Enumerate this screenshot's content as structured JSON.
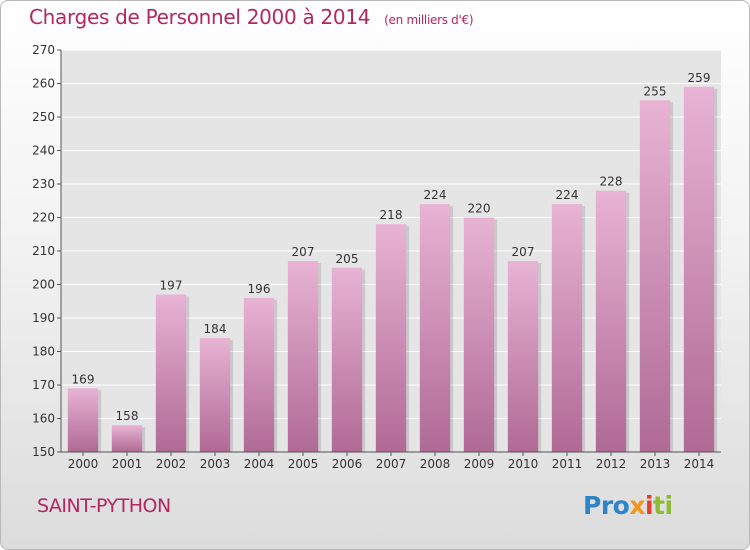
{
  "title": "Charges de Personnel 2000 à 2014",
  "unit_note": "(en milliers d'€)",
  "city": "SAINT-PYTHON",
  "logo": {
    "p1": "Pro",
    "p2": "x",
    "p3": "i",
    "p4": "ti"
  },
  "colors": {
    "accent": "#b4275e",
    "bar_light": "#e8b3d4",
    "bar_dark": "#b06a95"
  },
  "chart_data": {
    "type": "bar",
    "categories": [
      "2000",
      "2001",
      "2002",
      "2003",
      "2004",
      "2005",
      "2006",
      "2007",
      "2008",
      "2009",
      "2010",
      "2011",
      "2012",
      "2013",
      "2014"
    ],
    "values": [
      169,
      158,
      197,
      184,
      196,
      207,
      205,
      218,
      224,
      220,
      207,
      224,
      228,
      255,
      259
    ],
    "yticks": [
      150,
      160,
      170,
      180,
      190,
      200,
      210,
      220,
      230,
      240,
      250,
      260,
      270
    ],
    "ylim": [
      150,
      270
    ],
    "grid": true,
    "xlabel": "",
    "ylabel": ""
  }
}
